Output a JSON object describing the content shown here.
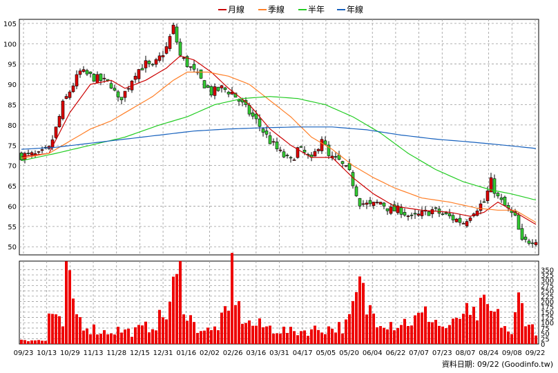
{
  "chart_data": {
    "type": "candlestick",
    "legend": [
      {
        "name": "月線",
        "color": "#cc0000"
      },
      {
        "name": "季線",
        "color": "#ff7f27"
      },
      {
        "name": "半年",
        "color": "#22cc22"
      },
      {
        "name": "年線",
        "color": "#1560bd"
      }
    ],
    "x_tick_labels": [
      "09/23",
      "10/13",
      "10/29",
      "11/13",
      "11/28",
      "12/15",
      "12/31",
      "01/16",
      "02/02",
      "02/26",
      "03/16",
      "03/31",
      "04/17",
      "05/05",
      "05/20",
      "06/04",
      "06/22",
      "07/07",
      "07/23",
      "08/07",
      "08/24",
      "09/08",
      "09/22"
    ],
    "price_ylim": [
      48,
      106
    ],
    "price_ticks": [
      50,
      55,
      60,
      65,
      70,
      75,
      80,
      85,
      90,
      95,
      100,
      105
    ],
    "volume_ylim": [
      0,
      390
    ],
    "volume_ticks": [
      0,
      25,
      50,
      75,
      100,
      125,
      150,
      175,
      200,
      225,
      250,
      275,
      300,
      325,
      350
    ],
    "price_anchors": [
      [
        0,
        72.5
      ],
      [
        5,
        72.5
      ],
      [
        8,
        74
      ],
      [
        10,
        79
      ],
      [
        12,
        85
      ],
      [
        15,
        90
      ],
      [
        17,
        93
      ],
      [
        20,
        92
      ],
      [
        23,
        91
      ],
      [
        26,
        90
      ],
      [
        28,
        86
      ],
      [
        30,
        88
      ],
      [
        33,
        93
      ],
      [
        36,
        95
      ],
      [
        38,
        94
      ],
      [
        42,
        99
      ],
      [
        44,
        104
      ],
      [
        46,
        97
      ],
      [
        48,
        95
      ],
      [
        52,
        91
      ],
      [
        55,
        88
      ],
      [
        58,
        89
      ],
      [
        61,
        88
      ],
      [
        63,
        86
      ],
      [
        66,
        83
      ],
      [
        68,
        81
      ],
      [
        72,
        76
      ],
      [
        75,
        73
      ],
      [
        78,
        71
      ],
      [
        80,
        74
      ],
      [
        82,
        73
      ],
      [
        84,
        71
      ],
      [
        87,
        77
      ],
      [
        89,
        72
      ],
      [
        92,
        71
      ],
      [
        95,
        68
      ],
      [
        98,
        61
      ],
      [
        101,
        60
      ],
      [
        104,
        61
      ],
      [
        107,
        59
      ],
      [
        110,
        59
      ],
      [
        113,
        57
      ],
      [
        116,
        58
      ],
      [
        119,
        59
      ],
      [
        122,
        58
      ],
      [
        125,
        57
      ],
      [
        128,
        56
      ],
      [
        131,
        59
      ],
      [
        134,
        61
      ],
      [
        136,
        66
      ],
      [
        138,
        62
      ],
      [
        140,
        60
      ],
      [
        143,
        57
      ],
      [
        145,
        51
      ],
      [
        149,
        52
      ]
    ],
    "ma_month": [
      [
        0,
        72.2
      ],
      [
        8,
        73
      ],
      [
        14,
        83
      ],
      [
        20,
        90
      ],
      [
        26,
        91
      ],
      [
        30,
        89
      ],
      [
        36,
        91
      ],
      [
        42,
        94
      ],
      [
        46,
        97
      ],
      [
        50,
        96
      ],
      [
        55,
        93
      ],
      [
        60,
        89
      ],
      [
        66,
        85
      ],
      [
        72,
        79
      ],
      [
        78,
        75
      ],
      [
        84,
        72
      ],
      [
        90,
        72
      ],
      [
        96,
        67
      ],
      [
        102,
        63
      ],
      [
        108,
        60
      ],
      [
        116,
        59
      ],
      [
        124,
        58.5
      ],
      [
        130,
        57.5
      ],
      [
        134,
        58.5
      ],
      [
        138,
        61
      ],
      [
        142,
        59
      ],
      [
        146,
        57
      ],
      [
        149,
        55.5
      ]
    ],
    "ma_quarter": [
      [
        0,
        71.8
      ],
      [
        8,
        73
      ],
      [
        14,
        76
      ],
      [
        20,
        79
      ],
      [
        26,
        81
      ],
      [
        32,
        84
      ],
      [
        38,
        87
      ],
      [
        44,
        91
      ],
      [
        48,
        93
      ],
      [
        54,
        93
      ],
      [
        60,
        92
      ],
      [
        66,
        90
      ],
      [
        72,
        86
      ],
      [
        78,
        82
      ],
      [
        84,
        77
      ],
      [
        90,
        74
      ],
      [
        96,
        70
      ],
      [
        102,
        67
      ],
      [
        108,
        64.5
      ],
      [
        116,
        62
      ],
      [
        124,
        61
      ],
      [
        132,
        59.5
      ],
      [
        138,
        59
      ],
      [
        143,
        59
      ],
      [
        149,
        56
      ]
    ],
    "ma_half": [
      [
        0,
        71.2
      ],
      [
        10,
        73
      ],
      [
        20,
        75
      ],
      [
        30,
        77
      ],
      [
        40,
        80
      ],
      [
        48,
        82
      ],
      [
        56,
        85
      ],
      [
        64,
        86.5
      ],
      [
        72,
        87
      ],
      [
        80,
        86.5
      ],
      [
        88,
        85
      ],
      [
        96,
        82
      ],
      [
        104,
        78
      ],
      [
        112,
        73
      ],
      [
        120,
        69
      ],
      [
        128,
        66
      ],
      [
        136,
        64
      ],
      [
        142,
        63
      ],
      [
        149,
        61.5
      ]
    ],
    "ma_year": [
      [
        0,
        74
      ],
      [
        10,
        74.5
      ],
      [
        20,
        75.5
      ],
      [
        30,
        76.5
      ],
      [
        40,
        77.5
      ],
      [
        50,
        78.5
      ],
      [
        60,
        79
      ],
      [
        70,
        79.3
      ],
      [
        80,
        79.5
      ],
      [
        90,
        79.5
      ],
      [
        100,
        78.8
      ],
      [
        110,
        77.5
      ],
      [
        120,
        76.5
      ],
      [
        130,
        75.8
      ],
      [
        140,
        75
      ],
      [
        149,
        74.2
      ]
    ],
    "volume_anchors": [
      [
        0,
        25
      ],
      [
        3,
        20
      ],
      [
        7,
        15
      ],
      [
        8,
        160
      ],
      [
        10,
        110
      ],
      [
        12,
        90
      ],
      [
        13,
        320
      ],
      [
        15,
        200
      ],
      [
        17,
        120
      ],
      [
        20,
        80
      ],
      [
        24,
        60
      ],
      [
        28,
        70
      ],
      [
        32,
        60
      ],
      [
        36,
        80
      ],
      [
        40,
        120
      ],
      [
        42,
        150
      ],
      [
        44,
        260
      ],
      [
        46,
        330
      ],
      [
        48,
        170
      ],
      [
        50,
        90
      ],
      [
        55,
        60
      ],
      [
        60,
        150
      ],
      [
        61,
        380
      ],
      [
        63,
        160
      ],
      [
        66,
        100
      ],
      [
        72,
        80
      ],
      [
        78,
        60
      ],
      [
        84,
        70
      ],
      [
        90,
        80
      ],
      [
        94,
        90
      ],
      [
        96,
        160
      ],
      [
        98,
        290
      ],
      [
        100,
        180
      ],
      [
        104,
        130
      ],
      [
        108,
        100
      ],
      [
        114,
        120
      ],
      [
        118,
        150
      ],
      [
        122,
        80
      ],
      [
        126,
        100
      ],
      [
        128,
        170
      ],
      [
        130,
        120
      ],
      [
        134,
        180
      ],
      [
        138,
        130
      ],
      [
        140,
        90
      ],
      [
        142,
        40
      ],
      [
        144,
        220
      ],
      [
        146,
        150
      ],
      [
        148,
        80
      ],
      [
        149,
        40
      ]
    ],
    "source_label": "資料日期: 09/22  (Goodinfo.tw)"
  }
}
